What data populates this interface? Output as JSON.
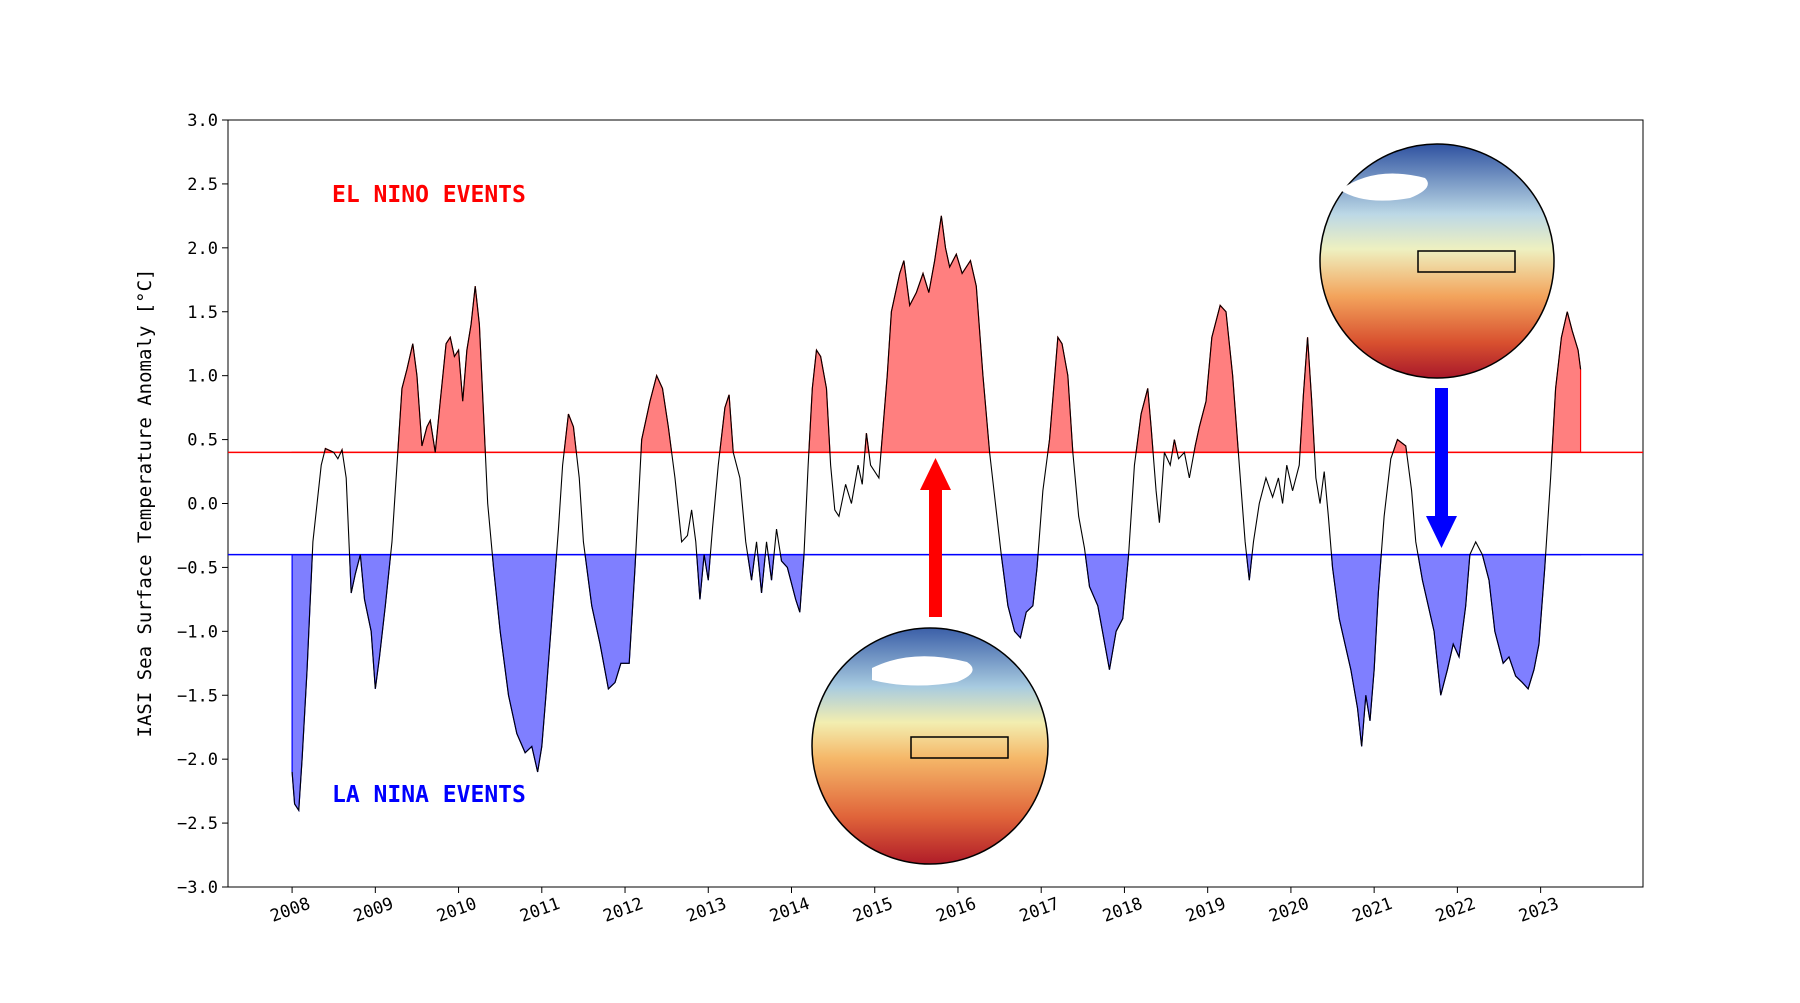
{
  "chart_data": {
    "type": "line",
    "ylabel": "IASI Sea Surface Temperature Anomaly [°C]",
    "line_color": "#000000",
    "xlim": [
      2007.23,
      2024.23
    ],
    "xticks": [
      2008,
      2009,
      2010,
      2011,
      2012,
      2013,
      2014,
      2015,
      2016,
      2017,
      2018,
      2019,
      2020,
      2021,
      2022,
      2023
    ],
    "ylim": [
      -3,
      3
    ],
    "yticks": [
      {
        "value": -3,
        "label": "−3.0"
      },
      {
        "value": -2.5,
        "label": "−2.5"
      },
      {
        "value": -2,
        "label": "−2.0"
      },
      {
        "value": -1.5,
        "label": "−1.5"
      },
      {
        "value": -1,
        "label": "−1.0"
      },
      {
        "value": -0.5,
        "label": "−0.5"
      },
      {
        "value": 0,
        "label": "0.0"
      },
      {
        "value": 0.5,
        "label": "0.5"
      },
      {
        "value": 1,
        "label": "1.0"
      },
      {
        "value": 1.5,
        "label": "1.5"
      },
      {
        "value": 2,
        "label": "2.0"
      },
      {
        "value": 2.5,
        "label": "2.5"
      },
      {
        "value": 3,
        "label": "3.0"
      }
    ],
    "thresholds": [
      {
        "value": 0.4,
        "color": "#ff0000",
        "fill": "#ff7f7f",
        "side": "above"
      },
      {
        "value": -0.4,
        "color": "#0000ff",
        "fill": "#7f7fff",
        "side": "below"
      }
    ],
    "annotations": [
      {
        "text": "EL NINO EVENTS",
        "color": "#ff0000"
      },
      {
        "text": "LA NINA EVENTS",
        "color": "#0000ff"
      }
    ],
    "x": [
      2008.0,
      2008.03,
      2008.08,
      2008.12,
      2008.18,
      2008.25,
      2008.3,
      2008.35,
      2008.4,
      2008.5,
      2008.55,
      2008.6,
      2008.65,
      2008.71,
      2008.76,
      2008.82,
      2008.87,
      2008.95,
      2009.0,
      2009.05,
      2009.12,
      2009.2,
      2009.27,
      2009.32,
      2009.38,
      2009.45,
      2009.5,
      2009.56,
      2009.62,
      2009.66,
      2009.72,
      2009.78,
      2009.85,
      2009.9,
      2009.95,
      2010.0,
      2010.05,
      2010.1,
      2010.15,
      2010.2,
      2010.25,
      2010.3,
      2010.35,
      2010.42,
      2010.5,
      2010.6,
      2010.7,
      2010.8,
      2010.88,
      2010.95,
      2011.0,
      2011.05,
      2011.12,
      2011.2,
      2011.25,
      2011.32,
      2011.38,
      2011.45,
      2011.5,
      2011.6,
      2011.7,
      2011.8,
      2011.88,
      2011.95,
      2012.05,
      2012.12,
      2012.2,
      2012.3,
      2012.38,
      2012.45,
      2012.52,
      2012.6,
      2012.68,
      2012.75,
      2012.8,
      2012.85,
      2012.9,
      2012.95,
      2013.0,
      2013.05,
      2013.12,
      2013.2,
      2013.25,
      2013.3,
      2013.38,
      2013.45,
      2013.52,
      2013.58,
      2013.64,
      2013.7,
      2013.76,
      2013.82,
      2013.88,
      2013.95,
      2014.05,
      2014.1,
      2014.15,
      2014.2,
      2014.25,
      2014.3,
      2014.35,
      2014.42,
      2014.47,
      2014.52,
      2014.57,
      2014.65,
      2014.72,
      2014.8,
      2014.85,
      2014.9,
      2014.95,
      2015.05,
      2015.1,
      2015.15,
      2015.2,
      2015.3,
      2015.35,
      2015.42,
      2015.5,
      2015.58,
      2015.65,
      2015.72,
      2015.8,
      2015.85,
      2015.9,
      2015.98,
      2016.05,
      2016.15,
      2016.22,
      2016.3,
      2016.38,
      2016.45,
      2016.52,
      2016.6,
      2016.68,
      2016.75,
      2016.82,
      2016.9,
      2016.95,
      2017.02,
      2017.1,
      2017.15,
      2017.2,
      2017.25,
      2017.32,
      2017.38,
      2017.45,
      2017.52,
      2017.58,
      2017.68,
      2017.75,
      2017.82,
      2017.9,
      2017.98,
      2018.05,
      2018.12,
      2018.2,
      2018.28,
      2018.32,
      2018.38,
      2018.42,
      2018.48,
      2018.55,
      2018.6,
      2018.65,
      2018.72,
      2018.78,
      2018.85,
      2018.9,
      2018.98,
      2019.05,
      2019.15,
      2019.22,
      2019.3,
      2019.38,
      2019.45,
      2019.5,
      2019.55,
      2019.62,
      2019.7,
      2019.78,
      2019.85,
      2019.9,
      2019.95,
      2020.02,
      2020.1,
      2020.15,
      2020.2,
      2020.25,
      2020.3,
      2020.35,
      2020.4,
      2020.45,
      2020.5,
      2020.58,
      2020.65,
      2020.72,
      2020.8,
      2020.85,
      2020.9,
      2020.95,
      2021.0,
      2021.05,
      2021.12,
      2021.2,
      2021.28,
      2021.38,
      2021.45,
      2021.5,
      2021.58,
      2021.65,
      2021.72,
      2021.8,
      2021.88,
      2021.95,
      2022.02,
      2022.1,
      2022.15,
      2022.22,
      2022.3,
      2022.38,
      2022.45,
      2022.55,
      2022.62,
      2022.7,
      2022.78,
      2022.85,
      2022.92,
      2022.98,
      2023.05,
      2023.12,
      2023.18,
      2023.25,
      2023.32,
      2023.38,
      2023.45,
      2023.48
    ],
    "values": [
      -2.1,
      -2.35,
      -2.4,
      -2.0,
      -1.3,
      -0.3,
      0.0,
      0.3,
      0.43,
      0.4,
      0.35,
      0.42,
      0.2,
      -0.7,
      -0.55,
      -0.4,
      -0.75,
      -1.0,
      -1.45,
      -1.2,
      -0.8,
      -0.3,
      0.4,
      0.9,
      1.05,
      1.25,
      1.0,
      0.45,
      0.6,
      0.65,
      0.4,
      0.8,
      1.25,
      1.3,
      1.15,
      1.2,
      0.8,
      1.2,
      1.4,
      1.7,
      1.4,
      0.7,
      0.0,
      -0.5,
      -1.0,
      -1.5,
      -1.8,
      -1.95,
      -1.9,
      -2.1,
      -1.9,
      -1.5,
      -0.9,
      -0.2,
      0.3,
      0.7,
      0.6,
      0.2,
      -0.3,
      -0.8,
      -1.1,
      -1.45,
      -1.4,
      -1.25,
      -1.25,
      -0.5,
      0.5,
      0.8,
      1.0,
      0.9,
      0.6,
      0.2,
      -0.3,
      -0.25,
      -0.05,
      -0.3,
      -0.75,
      -0.4,
      -0.6,
      -0.2,
      0.3,
      0.75,
      0.85,
      0.4,
      0.2,
      -0.3,
      -0.6,
      -0.3,
      -0.7,
      -0.3,
      -0.6,
      -0.2,
      -0.45,
      -0.5,
      -0.75,
      -0.85,
      -0.4,
      0.3,
      0.9,
      1.2,
      1.15,
      0.9,
      0.3,
      -0.05,
      -0.1,
      0.15,
      0.0,
      0.3,
      0.15,
      0.55,
      0.3,
      0.2,
      0.6,
      1.0,
      1.5,
      1.8,
      1.9,
      1.55,
      1.65,
      1.8,
      1.65,
      1.9,
      2.25,
      2.0,
      1.85,
      1.95,
      1.8,
      1.9,
      1.7,
      1.0,
      0.4,
      0.0,
      -0.4,
      -0.8,
      -1.0,
      -1.05,
      -0.85,
      -0.8,
      -0.5,
      0.1,
      0.5,
      0.9,
      1.3,
      1.25,
      1.0,
      0.4,
      -0.1,
      -0.35,
      -0.65,
      -0.8,
      -1.05,
      -1.3,
      -1.0,
      -0.9,
      -0.4,
      0.3,
      0.7,
      0.9,
      0.6,
      0.1,
      -0.15,
      0.4,
      0.3,
      0.5,
      0.35,
      0.4,
      0.2,
      0.45,
      0.6,
      0.8,
      1.3,
      1.55,
      1.5,
      1.0,
      0.3,
      -0.3,
      -0.6,
      -0.3,
      0.0,
      0.2,
      0.05,
      0.2,
      0.0,
      0.3,
      0.1,
      0.3,
      0.85,
      1.3,
      0.8,
      0.2,
      0.0,
      0.25,
      -0.1,
      -0.5,
      -0.9,
      -1.1,
      -1.3,
      -1.6,
      -1.9,
      -1.5,
      -1.7,
      -1.3,
      -0.7,
      -0.1,
      0.35,
      0.5,
      0.45,
      0.1,
      -0.3,
      -0.6,
      -0.8,
      -1.0,
      -1.5,
      -1.3,
      -1.1,
      -1.2,
      -0.8,
      -0.4,
      -0.3,
      -0.4,
      -0.6,
      -1.0,
      -1.25,
      -1.2,
      -1.35,
      -1.4,
      -1.45,
      -1.3,
      -1.1,
      -0.5,
      0.2,
      0.9,
      1.3,
      1.5,
      1.35,
      1.2,
      1.05
    ]
  }
}
